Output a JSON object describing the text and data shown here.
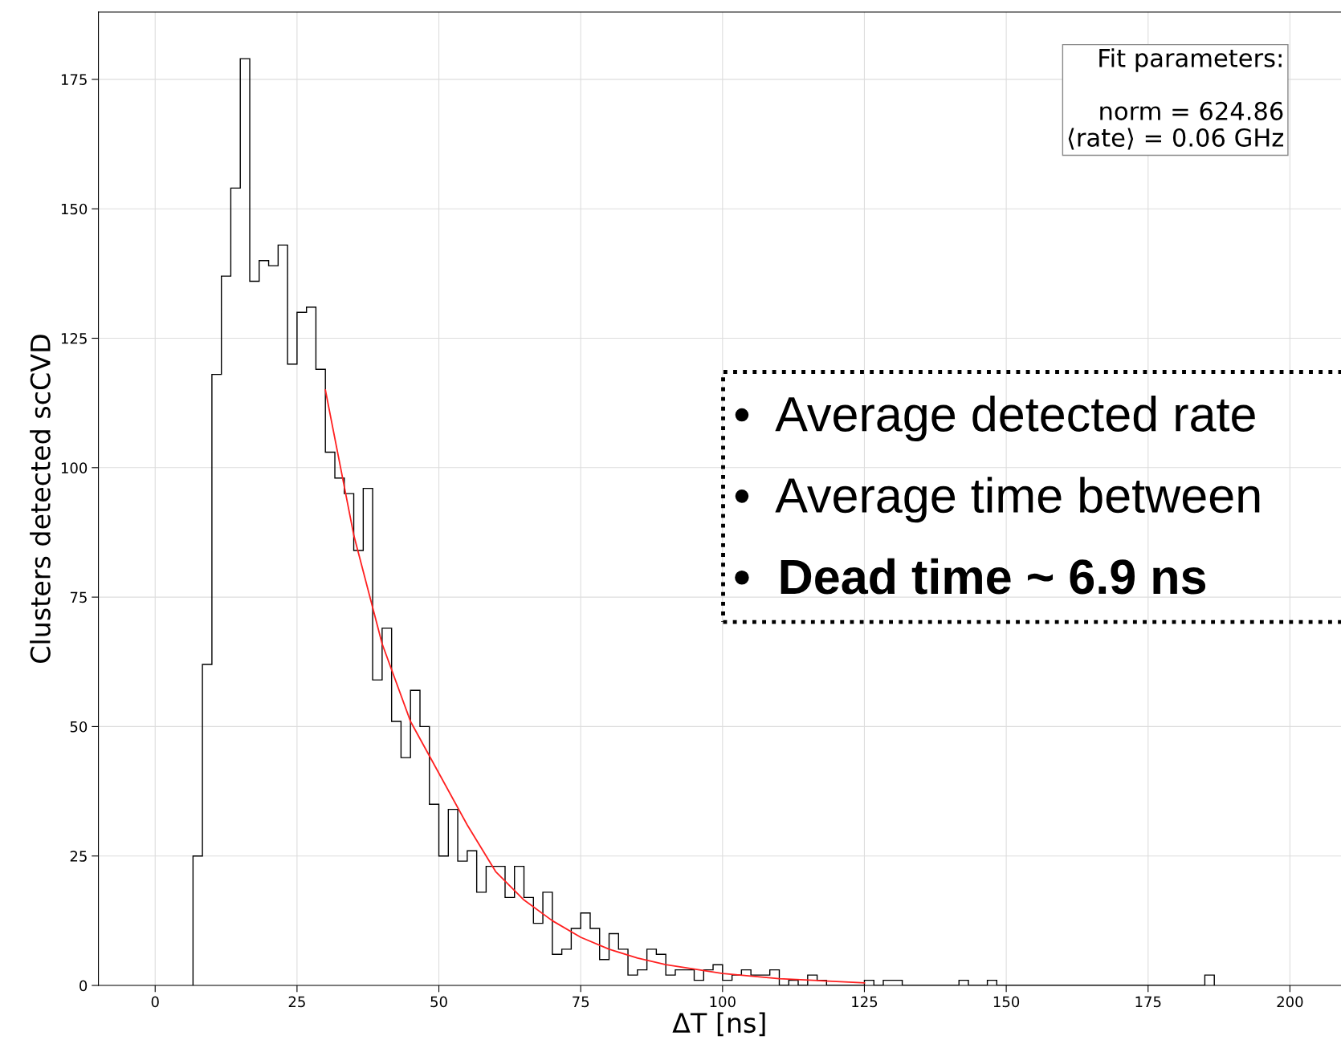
{
  "chart_data": {
    "type": "histogram",
    "xlabel": "ΔT [ns]",
    "ylabel": "Clusters detected scCVD",
    "bins": [
      6.67,
      8.33,
      10,
      11.67,
      13.33,
      15,
      16.67,
      18.33,
      20,
      21.67,
      23.33,
      25,
      26.67,
      28.33,
      30,
      31.67,
      33.33,
      35,
      36.67,
      38.33,
      40,
      41.67,
      43.33,
      45,
      46.67,
      48.33,
      50,
      51.67,
      53.33,
      55,
      56.67,
      58.33,
      60,
      61.67,
      63.33,
      65,
      66.67,
      68.33,
      70,
      71.67,
      73.33,
      75,
      76.67,
      78.33,
      80,
      81.67,
      83.33,
      85,
      86.67,
      88.33,
      90,
      91.67,
      93.33,
      95,
      96.67,
      98.33,
      100,
      101.67,
      103.33,
      105,
      106.67,
      108.33,
      110,
      111.67,
      113.33,
      115,
      116.67,
      118.33,
      120,
      121.67,
      123.33,
      125,
      126.67,
      128.33,
      130,
      131.67,
      133.33,
      135,
      136.67,
      138.33,
      140,
      141.67,
      143.33,
      145,
      146.67,
      148.33,
      150,
      151.67,
      153.33,
      155,
      156.67,
      158.33,
      160,
      161.67,
      163.33,
      165,
      166.67,
      168.33,
      170,
      171.67,
      173.33,
      175,
      176.67,
      178.33,
      180,
      181.67,
      183.33,
      185,
      186.67
    ],
    "values": [
      25,
      62,
      118,
      137,
      154,
      179,
      136,
      140,
      139,
      143,
      120,
      130,
      131,
      119,
      103,
      98,
      95,
      84,
      96,
      59,
      69,
      51,
      44,
      57,
      50,
      35,
      25,
      34,
      24,
      26,
      18,
      23,
      23,
      17,
      23,
      17,
      12,
      18,
      6,
      7,
      11,
      14,
      11,
      5,
      10,
      7,
      2,
      3,
      7,
      6,
      2,
      3,
      3,
      1,
      3,
      4,
      1,
      2,
      3,
      2,
      2,
      3,
      0,
      1,
      0,
      2,
      1,
      0,
      0,
      0,
      0,
      1,
      0,
      1,
      1,
      0,
      0,
      0,
      0,
      0,
      0,
      1,
      0,
      0,
      1,
      0,
      0,
      0,
      0,
      0,
      0,
      0,
      0,
      0,
      0,
      0,
      0,
      0,
      0,
      0,
      0,
      0,
      0,
      0,
      0,
      0,
      0,
      2
    ],
    "color": "#000000",
    "series": [
      {
        "type": "line",
        "color": "#ff2020",
        "x": [
          30,
          35,
          40,
          45,
          50,
          55,
          60,
          65,
          70,
          75,
          80,
          85,
          90,
          100,
          110,
          125
        ],
        "values": [
          115,
          87,
          66,
          51,
          41,
          31,
          22,
          16.5,
          12.5,
          9.3,
          7,
          5.3,
          4,
          2.3,
          1.3,
          0.5
        ]
      }
    ],
    "xlim": [
      -10,
      209
    ],
    "ylim": [
      0,
      188
    ],
    "xticks": [
      0,
      25,
      50,
      75,
      100,
      125,
      150,
      175,
      200
    ],
    "yticks": [
      0,
      25,
      50,
      75,
      100,
      125,
      150,
      175
    ],
    "grid": true,
    "annotations": [
      "Fit parameters:",
      "norm = 624.86",
      "⟨rate⟩ = 0.06 GHz",
      "•  Average detected rate",
      "•  Average time between",
      "•  Dead time ~ 6.9 ns"
    ]
  }
}
